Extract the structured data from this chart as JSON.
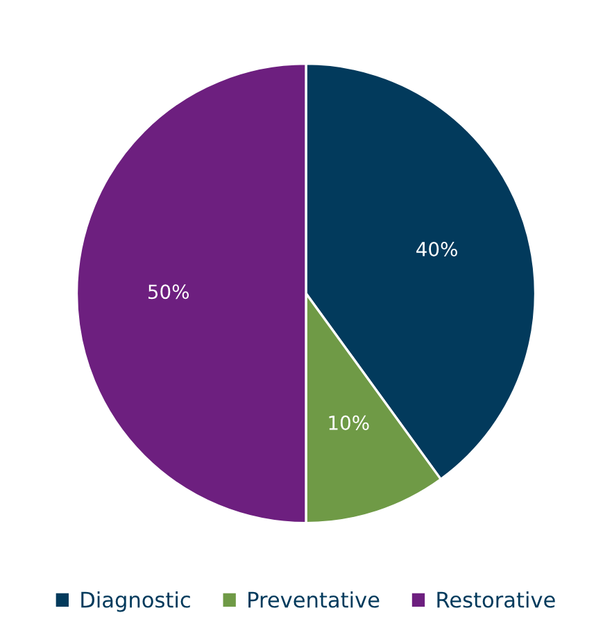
{
  "chart_data": {
    "type": "pie",
    "categories": [
      "Diagnostic",
      "Preventative",
      "Restorative"
    ],
    "values": [
      40,
      10,
      50
    ],
    "colors": [
      "#023a5c",
      "#6f9a46",
      "#6d1f7f"
    ],
    "value_labels": [
      "40%",
      "10%",
      "50%"
    ],
    "legend": "bottom"
  }
}
